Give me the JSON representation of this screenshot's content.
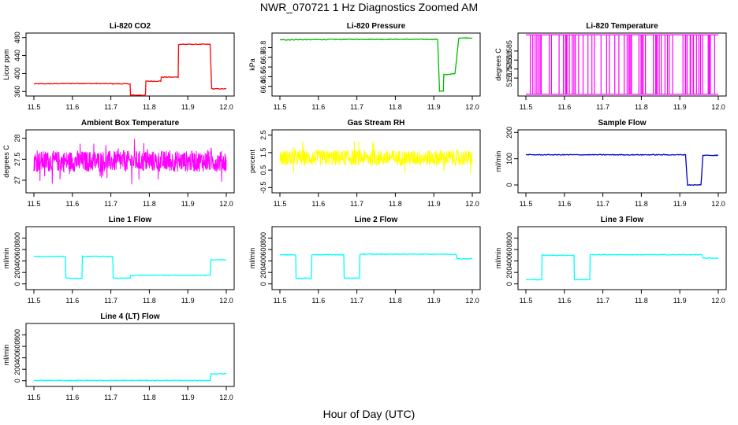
{
  "figure": {
    "title": "NWR_070721  1 Hz Diagnostics Zoomed AM",
    "xlabel": "Hour of Day (UTC)"
  },
  "chart_data": [
    {
      "type": "line",
      "title": "Li-820 CO2",
      "ylabel": "Licor ppm",
      "color": "#ff0000",
      "xlim": [
        11.5,
        12.0
      ],
      "ylim": [
        350,
        490
      ],
      "x_ticks": [
        11.5,
        11.6,
        11.7,
        11.8,
        11.9,
        12.0
      ],
      "y_ticks": [
        360,
        400,
        440,
        480
      ],
      "series": [
        {
          "x": [
            11.5,
            11.62,
            11.75,
            11.751,
            11.79,
            11.791,
            11.83,
            11.831,
            11.875,
            11.876,
            11.958,
            11.962,
            12.0
          ],
          "y": [
            377,
            378,
            377,
            352,
            352,
            383,
            383,
            392,
            392,
            465,
            465,
            366,
            366
          ]
        }
      ]
    },
    {
      "type": "line",
      "title": "Li-820 Pressure",
      "ylabel": "kPa",
      "color": "#00bb00",
      "xlim": [
        11.5,
        12.0
      ],
      "ylim": [
        66.3,
        66.95
      ],
      "x_ticks": [
        11.5,
        11.6,
        11.7,
        11.8,
        11.9,
        12.0
      ],
      "y_ticks": [
        66.4,
        66.5,
        66.6,
        66.7,
        66.8
      ],
      "series": [
        {
          "x": [
            11.5,
            11.7,
            11.91,
            11.915,
            11.925,
            11.926,
            11.955,
            11.965,
            12.0
          ],
          "y": [
            66.88,
            66.885,
            66.885,
            66.35,
            66.35,
            66.52,
            66.53,
            66.9,
            66.9
          ]
        }
      ]
    },
    {
      "type": "bar",
      "title": "Li-820 Temperature",
      "ylabel": "degrees C",
      "color": "#ff00ff",
      "xlim": [
        11.5,
        12.0
      ],
      "ylim": [
        51.56,
        51.595
      ],
      "x_ticks": [
        11.5,
        11.6,
        11.7,
        11.8,
        11.9,
        12.0
      ],
      "y_ticks": [
        51.57,
        51.575,
        51.58,
        51.585
      ],
      "note": "signal toggles between two quantized levels",
      "levels": [
        51.561,
        51.594
      ]
    },
    {
      "type": "line",
      "title": "Ambient Box Temperature",
      "ylabel": "degrees C",
      "color": "#ff00ff",
      "xlim": [
        11.5,
        12.0
      ],
      "ylim": [
        26.7,
        28.2
      ],
      "x_ticks": [
        11.5,
        11.6,
        11.7,
        11.8,
        11.9,
        12.0
      ],
      "y_ticks": [
        27.0,
        27.5,
        28.0
      ],
      "noise": {
        "mean": 27.45,
        "amplitude": 0.25
      }
    },
    {
      "type": "line",
      "title": "Gas Stream RH",
      "ylabel": "percent",
      "color": "#ffff00",
      "xlim": [
        11.5,
        12.0
      ],
      "ylim": [
        -0.8,
        2.8
      ],
      "x_ticks": [
        11.5,
        11.6,
        11.7,
        11.8,
        11.9,
        12.0
      ],
      "y_ticks": [
        -0.5,
        0.5,
        1.5,
        2.5
      ],
      "noise": {
        "mean": 1.2,
        "amplitude": 0.45
      }
    },
    {
      "type": "line",
      "title": "Sample Flow",
      "ylabel": "ml/min",
      "color": "#0000cc",
      "xlim": [
        11.5,
        12.0
      ],
      "ylim": [
        -30,
        210
      ],
      "x_ticks": [
        11.5,
        11.6,
        11.7,
        11.8,
        11.9,
        12.0
      ],
      "y_ticks": [
        0,
        100,
        200
      ],
      "series": [
        {
          "x": [
            11.5,
            11.915,
            11.92,
            11.955,
            11.96,
            12.0
          ],
          "y": [
            115,
            115,
            0,
            0,
            113,
            113
          ]
        }
      ]
    },
    {
      "type": "line",
      "title": "Line 1 Flow",
      "ylabel": "ml/min",
      "color": "#00ffff",
      "xlim": [
        11.5,
        12.0
      ],
      "ylim": [
        -100,
        1000
      ],
      "x_ticks": [
        11.5,
        11.6,
        11.7,
        11.8,
        11.9,
        12.0
      ],
      "y_ticks": [
        0,
        200,
        400,
        600,
        800
      ],
      "series": [
        {
          "x": [
            11.5,
            11.582,
            11.583,
            11.625,
            11.626,
            11.705,
            11.706,
            11.75,
            11.751,
            11.958,
            11.96,
            12.0
          ],
          "y": [
            480,
            480,
            100,
            100,
            480,
            480,
            100,
            100,
            150,
            150,
            420,
            420
          ]
        }
      ]
    },
    {
      "type": "line",
      "title": "Line 2 Flow",
      "ylabel": "ml/min",
      "color": "#00ffff",
      "xlim": [
        11.5,
        12.0
      ],
      "ylim": [
        -100,
        1000
      ],
      "x_ticks": [
        11.5,
        11.6,
        11.7,
        11.8,
        11.9,
        12.0
      ],
      "y_ticks": [
        0,
        200,
        400,
        600,
        800
      ],
      "series": [
        {
          "x": [
            11.5,
            11.541,
            11.542,
            11.582,
            11.583,
            11.666,
            11.667,
            11.707,
            11.708,
            11.958,
            11.96,
            12.0
          ],
          "y": [
            510,
            510,
            100,
            100,
            510,
            510,
            100,
            100,
            520,
            520,
            440,
            440
          ]
        }
      ]
    },
    {
      "type": "line",
      "title": "Line 3 Flow",
      "ylabel": "ml/min",
      "color": "#00ffff",
      "xlim": [
        11.5,
        12.0
      ],
      "ylim": [
        -100,
        1000
      ],
      "x_ticks": [
        11.5,
        11.6,
        11.7,
        11.8,
        11.9,
        12.0
      ],
      "y_ticks": [
        0,
        200,
        400,
        600,
        800
      ],
      "series": [
        {
          "x": [
            11.5,
            11.541,
            11.542,
            11.625,
            11.626,
            11.666,
            11.667,
            11.958,
            11.96,
            12.0
          ],
          "y": [
            75,
            75,
            500,
            500,
            75,
            75,
            510,
            510,
            450,
            450
          ]
        }
      ]
    },
    {
      "type": "line",
      "title": "Line 4 (LT) Flow",
      "ylabel": "ml/min",
      "color": "#00ffff",
      "xlim": [
        11.5,
        12.0
      ],
      "ylim": [
        -100,
        1000
      ],
      "x_ticks": [
        11.5,
        11.6,
        11.7,
        11.8,
        11.9,
        12.0
      ],
      "y_ticks": [
        0,
        200,
        400,
        600,
        800
      ],
      "series": [
        {
          "x": [
            11.5,
            11.958,
            11.96,
            12.0
          ],
          "y": [
            5,
            5,
            120,
            120
          ]
        }
      ]
    }
  ]
}
